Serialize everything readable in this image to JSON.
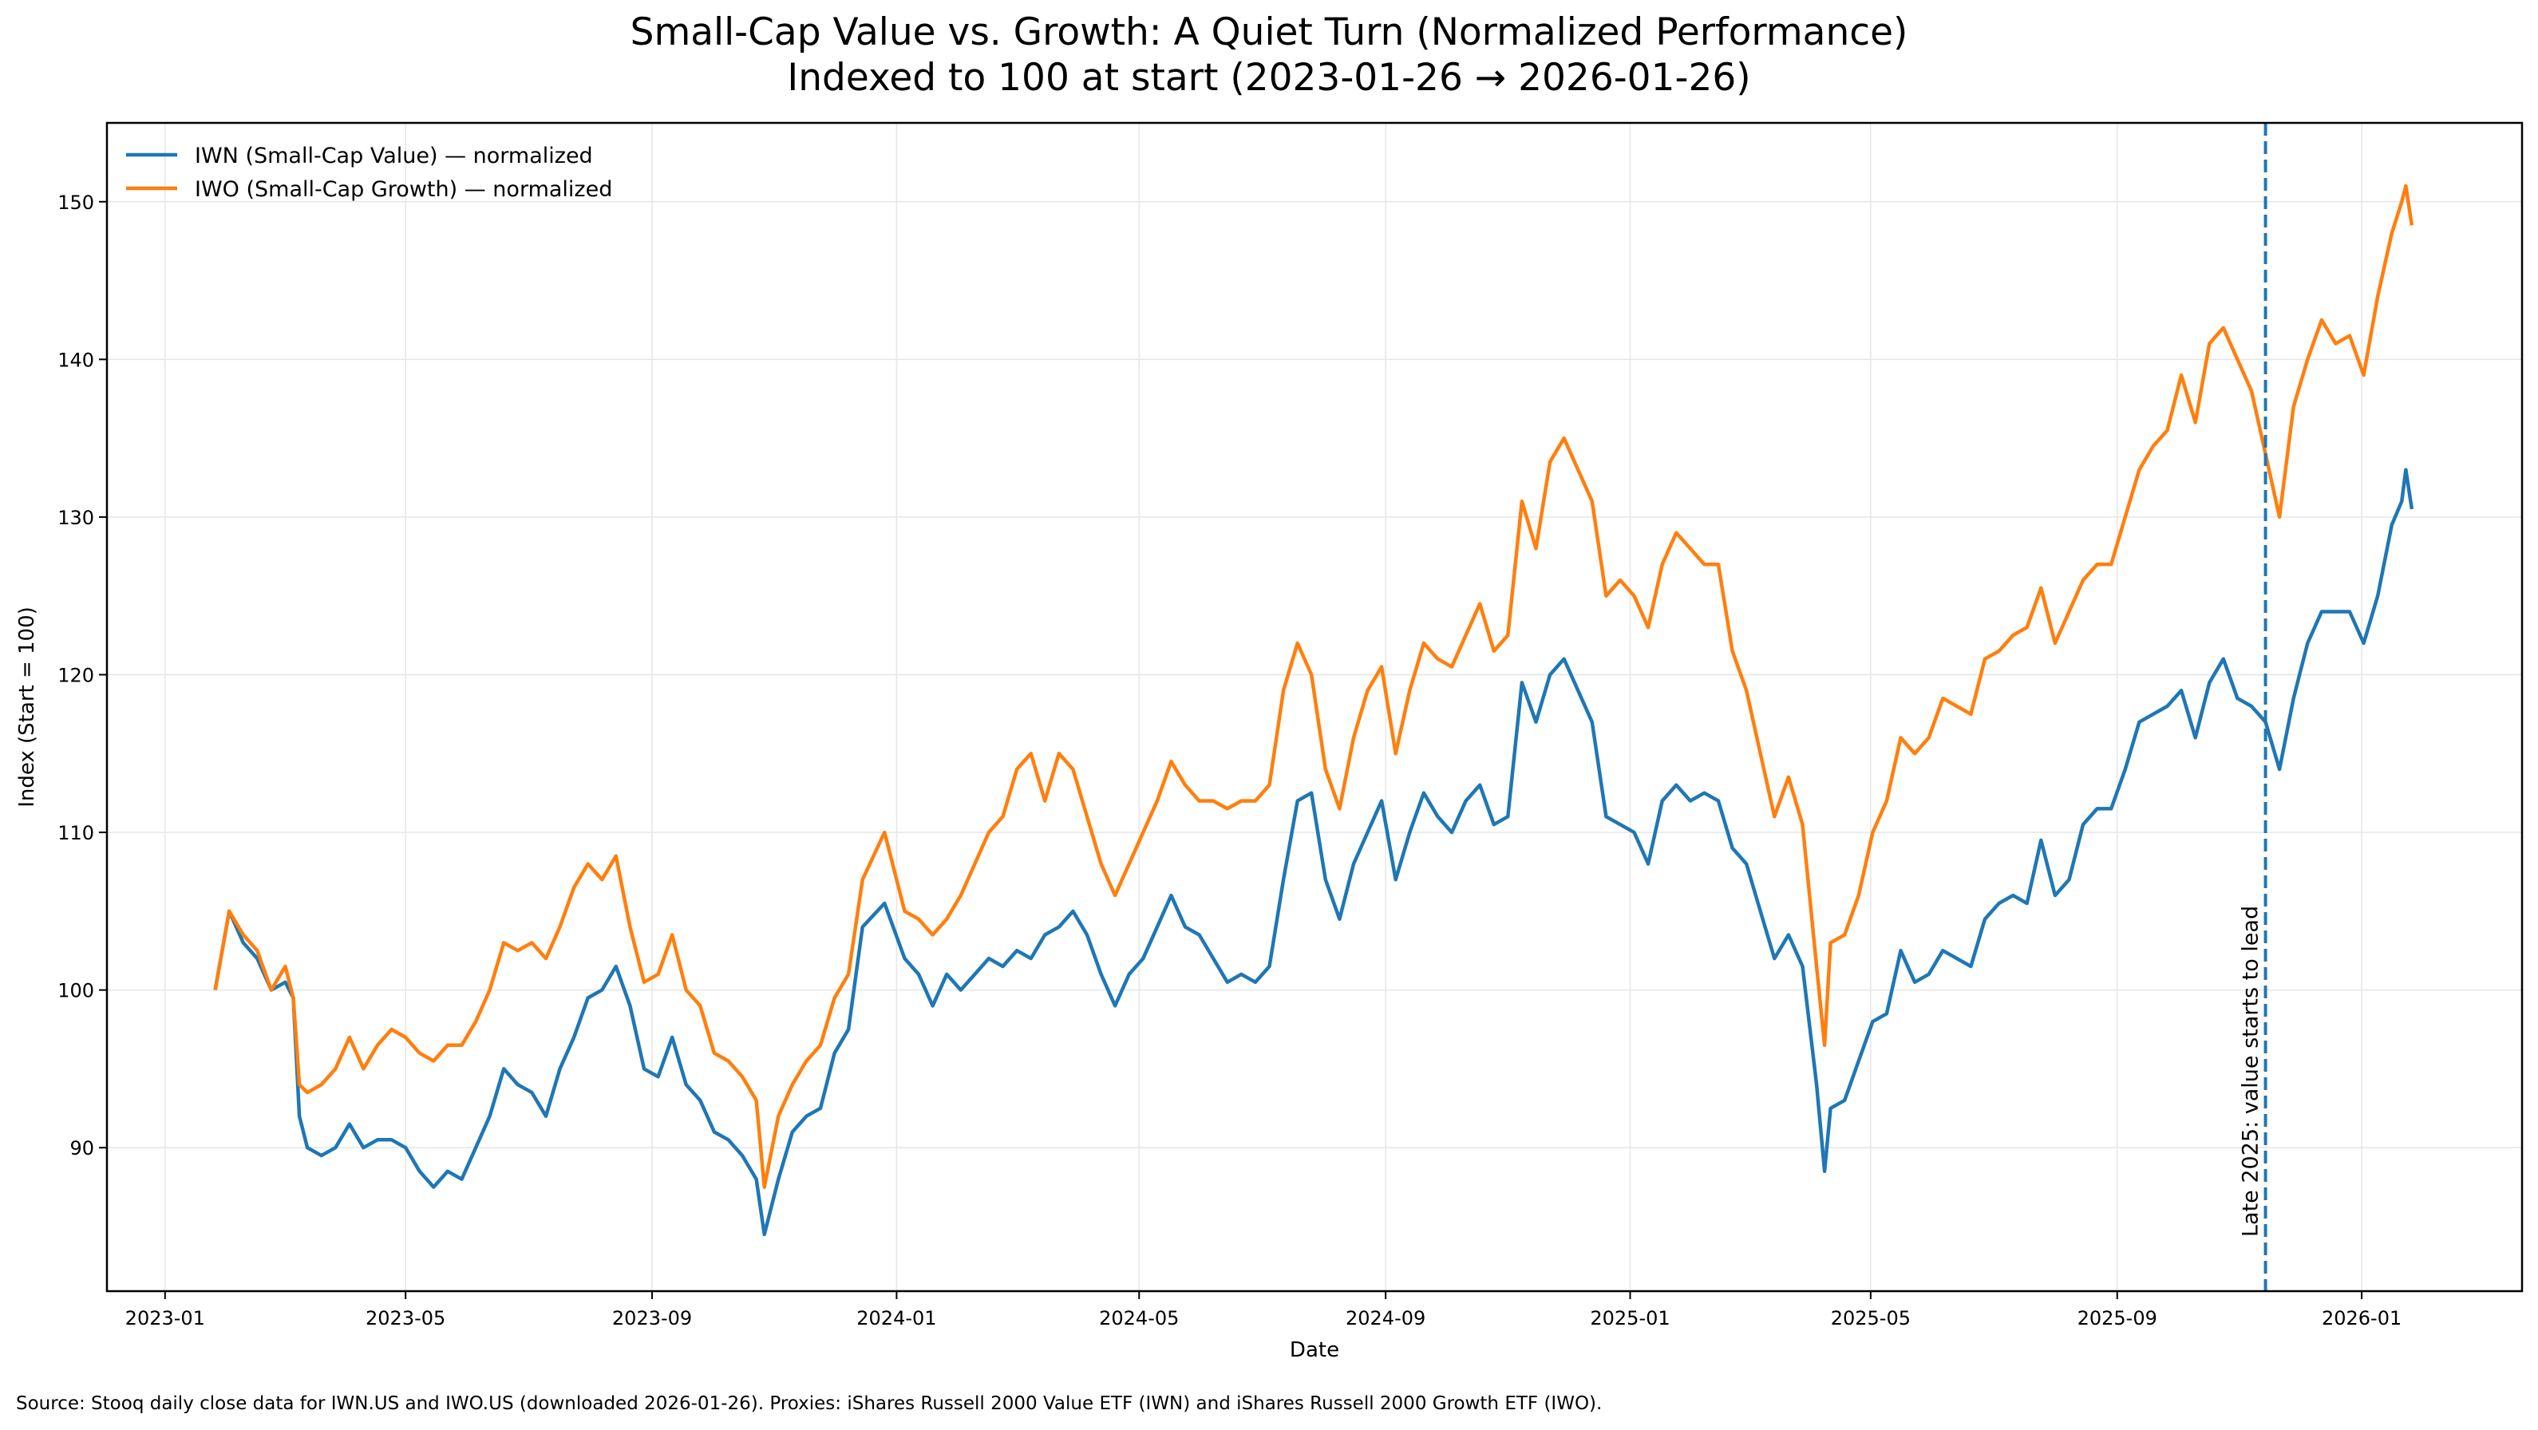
{
  "chart_data": {
    "type": "line",
    "title": "Small-Cap Value vs. Growth: A Quiet Turn (Normalized Performance)",
    "subtitle": "Indexed to 100 at start (2023-01-26 → 2026-01-26)",
    "xlabel": "Date",
    "ylabel": "Index (Start = 100)",
    "xlim": [
      "2022-12-03",
      "2026-03-22"
    ],
    "ylim": [
      80.9,
      155.0
    ],
    "grid": true,
    "legend_position": "top-left",
    "x_ticks": [
      "2023-01",
      "2023-05",
      "2023-09",
      "2024-01",
      "2024-05",
      "2024-09",
      "2025-01",
      "2025-05",
      "2025-09",
      "2026-01"
    ],
    "y_ticks": [
      90,
      100,
      110,
      120,
      130,
      140,
      150
    ],
    "annotation": {
      "date": "2025-11-14",
      "text": "Late 2025: value starts to lead",
      "color": "#1f77b4",
      "style": "dashed"
    },
    "source_note": "Source: Stooq daily close data for IWN.US and IWO.US (downloaded 2026-01-26).  Proxies: iShares Russell 2000 Value ETF (IWN) and iShares Russell 2000 Growth ETF (IWO).",
    "x": [
      "2023-01-26",
      "2023-02-02",
      "2023-02-09",
      "2023-02-16",
      "2023-02-23",
      "2023-03-02",
      "2023-03-06",
      "2023-03-09",
      "2023-03-13",
      "2023-03-20",
      "2023-03-27",
      "2023-04-03",
      "2023-04-10",
      "2023-04-17",
      "2023-04-24",
      "2023-05-01",
      "2023-05-08",
      "2023-05-15",
      "2023-05-22",
      "2023-05-29",
      "2023-06-05",
      "2023-06-12",
      "2023-06-19",
      "2023-06-26",
      "2023-07-03",
      "2023-07-10",
      "2023-07-17",
      "2023-07-24",
      "2023-07-31",
      "2023-08-07",
      "2023-08-14",
      "2023-08-21",
      "2023-08-28",
      "2023-09-04",
      "2023-09-11",
      "2023-09-18",
      "2023-09-25",
      "2023-10-02",
      "2023-10-09",
      "2023-10-16",
      "2023-10-23",
      "2023-10-27",
      "2023-11-03",
      "2023-11-10",
      "2023-11-17",
      "2023-11-24",
      "2023-12-01",
      "2023-12-08",
      "2023-12-15",
      "2023-12-26",
      "2024-01-05",
      "2024-01-12",
      "2024-01-19",
      "2024-01-26",
      "2024-02-02",
      "2024-02-09",
      "2024-02-16",
      "2024-02-23",
      "2024-03-01",
      "2024-03-08",
      "2024-03-15",
      "2024-03-22",
      "2024-03-29",
      "2024-04-05",
      "2024-04-12",
      "2024-04-19",
      "2024-04-26",
      "2024-05-03",
      "2024-05-10",
      "2024-05-17",
      "2024-05-24",
      "2024-05-31",
      "2024-06-07",
      "2024-06-14",
      "2024-06-21",
      "2024-06-28",
      "2024-07-05",
      "2024-07-12",
      "2024-07-19",
      "2024-07-26",
      "2024-08-02",
      "2024-08-09",
      "2024-08-16",
      "2024-08-23",
      "2024-08-30",
      "2024-09-06",
      "2024-09-13",
      "2024-09-20",
      "2024-09-27",
      "2024-10-04",
      "2024-10-11",
      "2024-10-18",
      "2024-10-25",
      "2024-11-01",
      "2024-11-08",
      "2024-11-15",
      "2024-11-22",
      "2024-11-29",
      "2024-12-06",
      "2024-12-13",
      "2024-12-20",
      "2024-12-27",
      "2025-01-03",
      "2025-01-10",
      "2025-01-17",
      "2025-01-24",
      "2025-01-31",
      "2025-02-07",
      "2025-02-14",
      "2025-02-21",
      "2025-02-28",
      "2025-03-07",
      "2025-03-14",
      "2025-03-21",
      "2025-03-28",
      "2025-04-04",
      "2025-04-08",
      "2025-04-11",
      "2025-04-18",
      "2025-04-25",
      "2025-05-02",
      "2025-05-09",
      "2025-05-16",
      "2025-05-23",
      "2025-05-30",
      "2025-06-06",
      "2025-06-13",
      "2025-06-20",
      "2025-06-27",
      "2025-07-04",
      "2025-07-11",
      "2025-07-18",
      "2025-07-25",
      "2025-08-01",
      "2025-08-08",
      "2025-08-15",
      "2025-08-22",
      "2025-08-29",
      "2025-09-05",
      "2025-09-12",
      "2025-09-19",
      "2025-09-26",
      "2025-10-03",
      "2025-10-10",
      "2025-10-17",
      "2025-10-24",
      "2025-10-31",
      "2025-11-07",
      "2025-11-14",
      "2025-11-21",
      "2025-11-28",
      "2025-12-05",
      "2025-12-12",
      "2025-12-19",
      "2025-12-26",
      "2026-01-02",
      "2026-01-09",
      "2026-01-16",
      "2026-01-21",
      "2026-01-23",
      "2026-01-26"
    ],
    "series": [
      {
        "name": "IWN (Small-Cap Value) — normalized",
        "color": "#1f77b4",
        "values": [
          100,
          105,
          103,
          102,
          100,
          100.5,
          99.5,
          92,
          90,
          89.5,
          90,
          91.5,
          90,
          90.5,
          90.5,
          90,
          88.5,
          87.5,
          88.5,
          88,
          90,
          92,
          95,
          94,
          93.5,
          92,
          95,
          97,
          99.5,
          100,
          101.5,
          99,
          95,
          94.5,
          97,
          94,
          93,
          91,
          90.5,
          89.5,
          88,
          84.5,
          88,
          91,
          92,
          92.5,
          96,
          97.5,
          104,
          105.5,
          102,
          101,
          99,
          101,
          100,
          101,
          102,
          101.5,
          102.5,
          102,
          103.5,
          104,
          105,
          103.5,
          101,
          99,
          101,
          102,
          104,
          106,
          104,
          103.5,
          102,
          100.5,
          101,
          100.5,
          101.5,
          107,
          112,
          112.5,
          107,
          104.5,
          108,
          110,
          112,
          107,
          110,
          112.5,
          111,
          110,
          112,
          113,
          110.5,
          111,
          119.5,
          117,
          120,
          121,
          119,
          117,
          111,
          110.5,
          110,
          108,
          112,
          113,
          112,
          112.5,
          112,
          109,
          108,
          105,
          102,
          103.5,
          101.5,
          94,
          88.5,
          92.5,
          93,
          95.5,
          98,
          98.5,
          102.5,
          100.5,
          101,
          102.5,
          102,
          101.5,
          104.5,
          105.5,
          106,
          105.5,
          109.5,
          106,
          107,
          110.5,
          111.5,
          111.5,
          114,
          117,
          117.5,
          118,
          119,
          116,
          119.5,
          121,
          118.5,
          118,
          117,
          114,
          118.5,
          122,
          124,
          124,
          124,
          122,
          125,
          129.5,
          131,
          133,
          130.5
        ]
      },
      {
        "name": "IWO (Small-Cap Growth) — normalized",
        "color": "#ff7f0e",
        "values": [
          100,
          105,
          103.5,
          102.5,
          100,
          101.5,
          99.5,
          94,
          93.5,
          94,
          95,
          97,
          95,
          96.5,
          97.5,
          97,
          96,
          95.5,
          96.5,
          96.5,
          98,
          100,
          103,
          102.5,
          103,
          102,
          104,
          106.5,
          108,
          107,
          108.5,
          104,
          100.5,
          101,
          103.5,
          100,
          99,
          96,
          95.5,
          94.5,
          93,
          87.5,
          92,
          94,
          95.5,
          96.5,
          99.5,
          101,
          107,
          110,
          105,
          104.5,
          103.5,
          104.5,
          106,
          108,
          110,
          111,
          114,
          115,
          112,
          115,
          114,
          111,
          108,
          106,
          108,
          110,
          112,
          114.5,
          113,
          112,
          112,
          111.5,
          112,
          112,
          113,
          119,
          122,
          120,
          114,
          111.5,
          116,
          119,
          120.5,
          115,
          119,
          122,
          121,
          120.5,
          122.5,
          124.5,
          121.5,
          122.5,
          131,
          128,
          133.5,
          135,
          133,
          131,
          125,
          126,
          125,
          123,
          127,
          129,
          128,
          127,
          127,
          121.5,
          119,
          115,
          111,
          113.5,
          110.5,
          101.5,
          96.5,
          103,
          103.5,
          106,
          110,
          112,
          116,
          115,
          116,
          118.5,
          118,
          117.5,
          121,
          121.5,
          122.5,
          123,
          125.5,
          122,
          124,
          126,
          127,
          127,
          130,
          133,
          134.5,
          135.5,
          139,
          136,
          141,
          142,
          140,
          138,
          134,
          130,
          137,
          140,
          142.5,
          141,
          141.5,
          139,
          144,
          148,
          150,
          151,
          148.5
        ]
      }
    ]
  }
}
